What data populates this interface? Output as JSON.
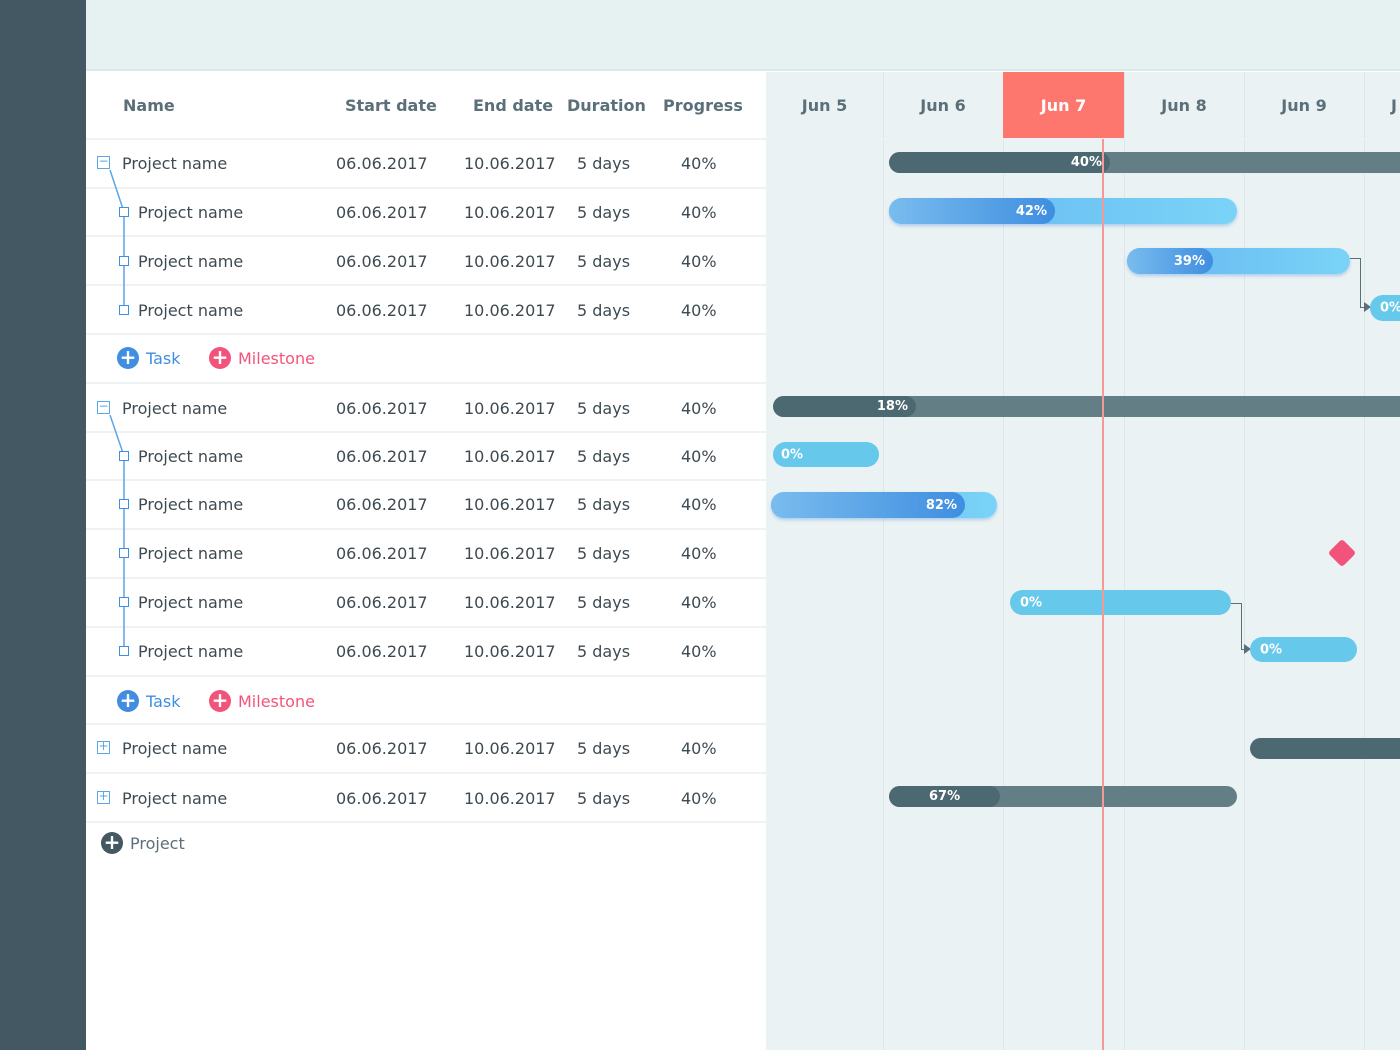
{
  "columns": {
    "name": "Name",
    "start": "Start date",
    "end": "End date",
    "duration": "Duration",
    "progress": "Progress"
  },
  "days": [
    "Jun 5",
    "Jun 6",
    "Jun 7",
    "Jun 8",
    "Jun 9",
    "J"
  ],
  "today": "Jun 7",
  "colors": {
    "sidebar": "#435862",
    "today": "#fd776f",
    "task": "#3f8ee0",
    "milestone": "#f2537a"
  },
  "rows": [
    {
      "name": "Project name",
      "start": "06.06.2017",
      "end": "10.06.2017",
      "duration": "5 days",
      "progress": "40%"
    },
    {
      "name": "Project name",
      "start": "06.06.2017",
      "end": "10.06.2017",
      "duration": "5 days",
      "progress": "40%"
    },
    {
      "name": "Project name",
      "start": "06.06.2017",
      "end": "10.06.2017",
      "duration": "5 days",
      "progress": "40%"
    },
    {
      "name": "Project name",
      "start": "06.06.2017",
      "end": "10.06.2017",
      "duration": "5 days",
      "progress": "40%"
    },
    {
      "name": "Project name",
      "start": "06.06.2017",
      "end": "10.06.2017",
      "duration": "5 days",
      "progress": "40%"
    },
    {
      "name": "Project name",
      "start": "06.06.2017",
      "end": "10.06.2017",
      "duration": "5 days",
      "progress": "40%"
    },
    {
      "name": "Project name",
      "start": "06.06.2017",
      "end": "10.06.2017",
      "duration": "5 days",
      "progress": "40%"
    },
    {
      "name": "Project name",
      "start": "06.06.2017",
      "end": "10.06.2017",
      "duration": "5 days",
      "progress": "40%"
    },
    {
      "name": "Project name",
      "start": "06.06.2017",
      "end": "10.06.2017",
      "duration": "5 days",
      "progress": "40%"
    },
    {
      "name": "Project name",
      "start": "06.06.2017",
      "end": "10.06.2017",
      "duration": "5 days",
      "progress": "40%"
    },
    {
      "name": "Project name",
      "start": "06.06.2017",
      "end": "10.06.2017",
      "duration": "5 days",
      "progress": "40%"
    },
    {
      "name": "Project name",
      "start": "06.06.2017",
      "end": "10.06.2017",
      "duration": "5 days",
      "progress": "40%"
    }
  ],
  "bars": [
    "40%",
    "42%",
    "39%",
    "0%",
    "18%",
    "0%",
    "82%",
    "0%",
    "0%",
    "67%"
  ],
  "actions": {
    "task": "Task",
    "milestone": "Milestone",
    "project": "Project"
  }
}
